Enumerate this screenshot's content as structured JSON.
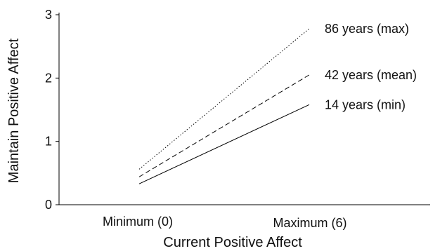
{
  "chart_data": {
    "type": "line",
    "xlabel": "Current Positive Affect",
    "ylabel": "Maintain Positive Affect",
    "categories": [
      "Minimum (0)",
      "Maximum (6)"
    ],
    "x": [
      0,
      6
    ],
    "ylim": [
      0,
      3
    ],
    "yticks": [
      0,
      1,
      2,
      3
    ],
    "grid": false,
    "series": [
      {
        "name": "86 years (max)",
        "values": [
          0.56,
          2.78
        ],
        "dash": "dotted"
      },
      {
        "name": "42 years (mean)",
        "values": [
          0.44,
          2.05
        ],
        "dash": "dashed"
      },
      {
        "name": "14 years (min)",
        "values": [
          0.33,
          1.58
        ],
        "dash": "solid"
      }
    ]
  }
}
